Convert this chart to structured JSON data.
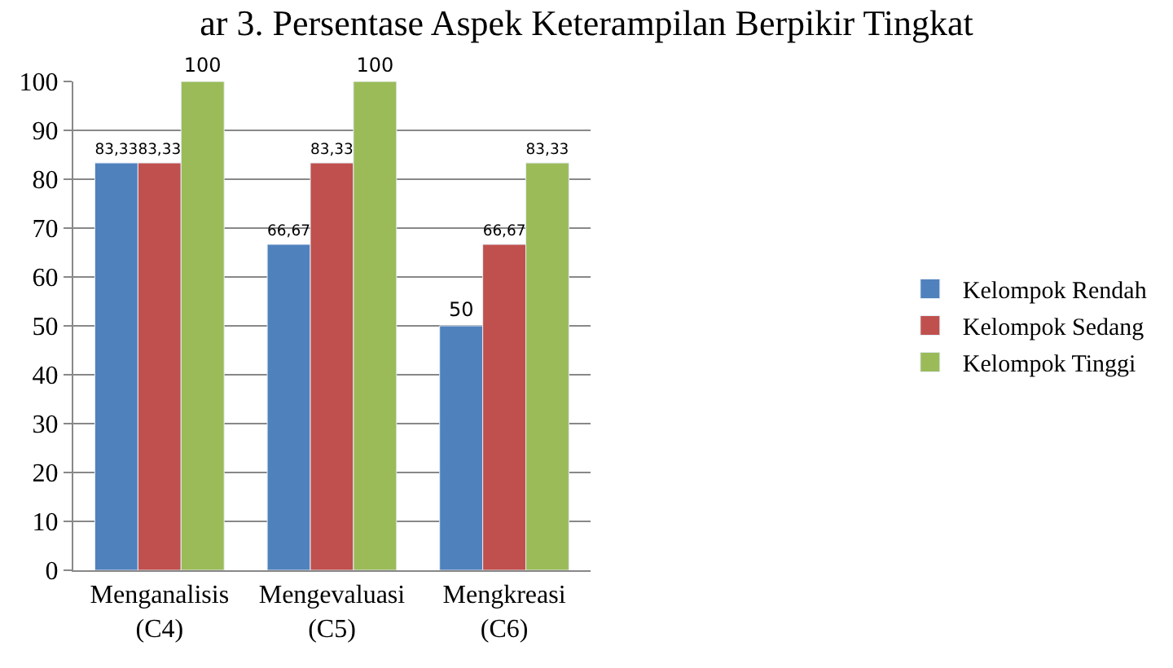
{
  "chart_data": {
    "type": "bar",
    "title": "ar 3. Persentase Aspek Keterampilan Berpikir Tingkat",
    "categories": [
      "Menganalisis\n(C4)",
      "Mengevaluasi\n(C5)",
      "Mengkreasi\n(C6)"
    ],
    "series": [
      {
        "name": "Kelompok Rendah",
        "color": "#4f81bd",
        "values": [
          83.33,
          66.67,
          50
        ],
        "value_labels": [
          "83,33",
          "66,67",
          "50"
        ]
      },
      {
        "name": "Kelompok Sedang",
        "color": "#c0504d",
        "values": [
          83.33,
          83.33,
          66.67
        ],
        "value_labels": [
          "83,33",
          "83,33",
          "66,67"
        ]
      },
      {
        "name": "Kelompok Tinggi",
        "color": "#9bbb59",
        "values": [
          100,
          100,
          83.33
        ],
        "value_labels": [
          "100",
          "100",
          "83,33"
        ]
      }
    ],
    "ylim": [
      0,
      100
    ],
    "yticks": [
      0,
      10,
      20,
      30,
      40,
      50,
      60,
      70,
      80,
      90,
      100
    ],
    "grid": "y",
    "legend": "right"
  }
}
